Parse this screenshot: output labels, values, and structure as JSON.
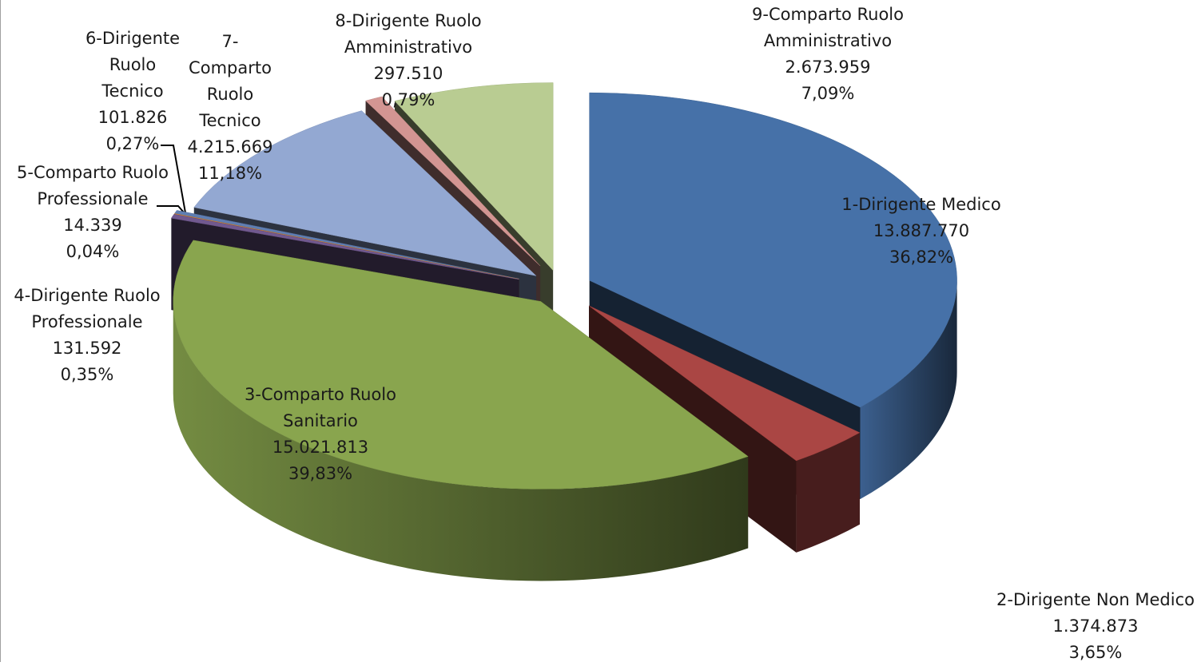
{
  "chart_data": {
    "type": "pie",
    "variant": "3d-exploded",
    "title": "",
    "slices": [
      {
        "label": "1-Dirigente Medico",
        "value": 13887770,
        "value_label": "13.887.770",
        "percent_label": "36,82%",
        "color": "#4671a8"
      },
      {
        "label": "2-Dirigente Non Medico",
        "value": 1374873,
        "value_label": "1.374.873",
        "percent_label": "3,65%",
        "color": "#aa4644"
      },
      {
        "label": "3-Comparto Ruolo Sanitario",
        "value": 15021813,
        "value_label": "15.021.813",
        "percent_label": "39,83%",
        "color": "#89a54e"
      },
      {
        "label": "4-Dirigente Ruolo Professionale",
        "value": 131592,
        "value_label": "131.592",
        "percent_label": "0,35%",
        "color": "#71598f"
      },
      {
        "label": "5-Comparto Ruolo Professionale",
        "value": 14339,
        "value_label": "14.339",
        "percent_label": "0,04%",
        "color": "#e38e3a"
      },
      {
        "label": "6-Dirigente Ruolo Tecnico",
        "value": 101826,
        "value_label": "101.826",
        "percent_label": "0,27%",
        "color": "#5f7eb2"
      },
      {
        "label": "7-Comparto Ruolo Tecnico",
        "value": 4215669,
        "value_label": "4.215.669",
        "percent_label": "11,18%",
        "color": "#93a8d2"
      },
      {
        "label": "8-Dirigente Ruolo Amministrativo",
        "value": 297510,
        "value_label": "297.510",
        "percent_label": "0,79%",
        "color": "#d39592"
      },
      {
        "label": "9-Comparto Ruolo Amministrativo",
        "value": 2673959,
        "value_label": "2.673.959",
        "percent_label": "7,09%",
        "color": "#b9cc92"
      }
    ]
  },
  "labels": [
    {
      "lines": [
        "1-Dirigente Medico",
        "13.887.770",
        "36,82%"
      ]
    },
    {
      "lines": [
        "2-Dirigente Non Medico",
        "1.374.873",
        "3,65%"
      ]
    },
    {
      "lines": [
        "3-Comparto Ruolo",
        "Sanitario",
        "15.021.813",
        "39,83%"
      ]
    },
    {
      "lines": [
        "4-Dirigente Ruolo",
        "Professionale",
        "131.592",
        "0,35%"
      ]
    },
    {
      "lines": [
        "5-Comparto Ruolo",
        "Professionale",
        "14.339",
        "0,04%"
      ]
    },
    {
      "lines": [
        "6-Dirigente",
        "Ruolo",
        "Tecnico",
        "101.826",
        "0,27%"
      ]
    },
    {
      "lines": [
        "7-",
        "Comparto",
        "Ruolo",
        "Tecnico",
        "4.215.669",
        "11,18%"
      ]
    },
    {
      "lines": [
        "8-Dirigente Ruolo",
        "Amministrativo",
        "297.510",
        "0,79%"
      ]
    },
    {
      "lines": [
        "9-Comparto Ruolo",
        "Amministrativo",
        "2.673.959",
        "7,09%"
      ]
    }
  ]
}
